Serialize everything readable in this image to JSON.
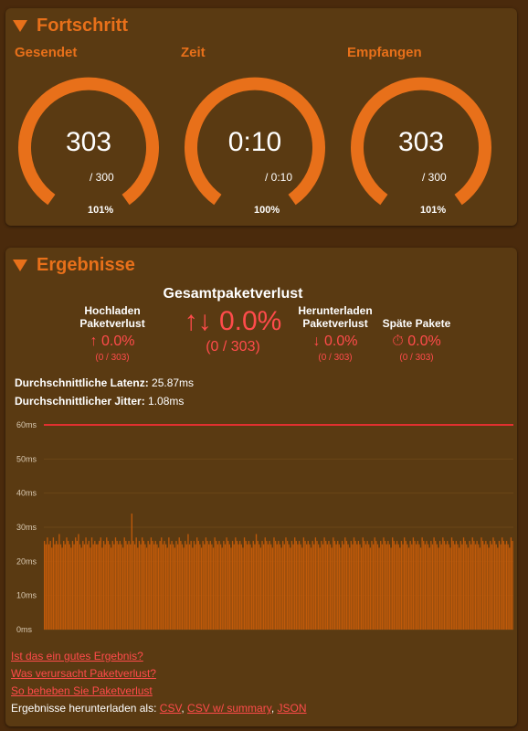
{
  "progress": {
    "title": "Fortschritt",
    "gauges": [
      {
        "label": "Gesendet",
        "main": "303",
        "sub": "/ 300",
        "pct": "101%",
        "fraction": 1.0
      },
      {
        "label": "Zeit",
        "main": "0:10",
        "sub": "/ 0:10",
        "pct": "100%",
        "fraction": 1.0
      },
      {
        "label": "Empfangen",
        "main": "303",
        "sub": "/ 300",
        "pct": "101%",
        "fraction": 1.0
      }
    ]
  },
  "results": {
    "title": "Ergebnisse",
    "upload_loss": {
      "title_line1": "Hochladen",
      "title_line2": "Paketverlust",
      "value": "↑ 0.0%",
      "fraction": "(0 / 303)"
    },
    "total_loss": {
      "title": "Gesamtpaketverlust",
      "value": "↑↓ 0.0%",
      "fraction": "(0 / 303)"
    },
    "download_loss": {
      "title_line1": "Herunterladen",
      "title_line2": "Paketverlust",
      "value": "↓ 0.0%",
      "fraction": "(0 / 303)"
    },
    "late_packets": {
      "title": "Späte Pakete",
      "value": "⏱ 0.0%",
      "fraction": "(0 / 303)"
    },
    "latency_label": "Durchschnittliche Latenz:",
    "latency_value": "25.87ms",
    "jitter_label": "Durchschnittlicher Jitter:",
    "jitter_value": "1.08ms",
    "links": {
      "good": "Ist das ein gutes Ergebnis?",
      "cause": "Was verursacht Paketverlust?",
      "fix": "So beheben Sie Paketverlust",
      "download_label": "Ergebnisse herunterladen als:",
      "csv": "CSV",
      "csv_summary": "CSV w/ summary",
      "json": "JSON"
    }
  },
  "colors": {
    "accent": "#e8701a",
    "loss": "#ff4b4b",
    "bars": "#c05a0a",
    "limit_line": "#e03030"
  },
  "chart_data": {
    "type": "bar",
    "title": "",
    "xlabel": "",
    "ylabel": "",
    "ylim": [
      0,
      60
    ],
    "y_ticks": [
      "0ms",
      "10ms",
      "20ms",
      "30ms",
      "40ms",
      "50ms",
      "60ms"
    ],
    "limit_line_value": 60,
    "series": [
      {
        "values": [
          26,
          25,
          27,
          25,
          26,
          24,
          27,
          25,
          26,
          25,
          28,
          25,
          24,
          26,
          25,
          27,
          26,
          25,
          24,
          26,
          25,
          27,
          26,
          28,
          25,
          24,
          26,
          25,
          27,
          25,
          26,
          24,
          27,
          25,
          26,
          25,
          25,
          26,
          27,
          24,
          26,
          25,
          27,
          26,
          25,
          24,
          26,
          25,
          27,
          26,
          25,
          26,
          25,
          24,
          27,
          26,
          25,
          26,
          25,
          34,
          26,
          25,
          27,
          24,
          26,
          25,
          27,
          26,
          25,
          24,
          26,
          25,
          27,
          26,
          25,
          26,
          25,
          24,
          26,
          27,
          25,
          26,
          25,
          24,
          27,
          25,
          26,
          25,
          24,
          26,
          25,
          27,
          26,
          25,
          24,
          26,
          25,
          28,
          25,
          26,
          24,
          26,
          25,
          27,
          26,
          25,
          24,
          26,
          25,
          27,
          26,
          25,
          26,
          25,
          24,
          27,
          26,
          25,
          26,
          25,
          24,
          26,
          25,
          27,
          26,
          25,
          24,
          26,
          25,
          27,
          26,
          25,
          26,
          25,
          24,
          27,
          26,
          25,
          26,
          25,
          24,
          26,
          25,
          28,
          26,
          25,
          24,
          26,
          25,
          27,
          26,
          25,
          26,
          25,
          24,
          27,
          26,
          25,
          26,
          25,
          24,
          26,
          25,
          27,
          26,
          25,
          24,
          26,
          25,
          27,
          26,
          25,
          26,
          25,
          24,
          27,
          26,
          25,
          26,
          25,
          24,
          26,
          25,
          27,
          26,
          25,
          24,
          26,
          25,
          27,
          26,
          25,
          26,
          25,
          24,
          27,
          26,
          25,
          26,
          25,
          24,
          26,
          25,
          27,
          26,
          25,
          24,
          26,
          25,
          27,
          26,
          25,
          26,
          25,
          24,
          27,
          26,
          25,
          26,
          25,
          24,
          26,
          25,
          27,
          26,
          25,
          24,
          26,
          25,
          27,
          26,
          25,
          26,
          25,
          24,
          27,
          26,
          25,
          26,
          25,
          24,
          26,
          25,
          27,
          26,
          25,
          24,
          26,
          25,
          27,
          26,
          25,
          26,
          25,
          24,
          27,
          26,
          25,
          26,
          25,
          24,
          26,
          25,
          27,
          26,
          25,
          24,
          26,
          25,
          27,
          26,
          25,
          26,
          25,
          24,
          27,
          26,
          25,
          26,
          25,
          24,
          26,
          25,
          27,
          26,
          25,
          24,
          26,
          25,
          27,
          26,
          25,
          26,
          25,
          24,
          27,
          26,
          25,
          26,
          25,
          24,
          26,
          25,
          27,
          26,
          25,
          24,
          26,
          25,
          27,
          26,
          25,
          26,
          25,
          24,
          27,
          26
        ]
      }
    ]
  }
}
